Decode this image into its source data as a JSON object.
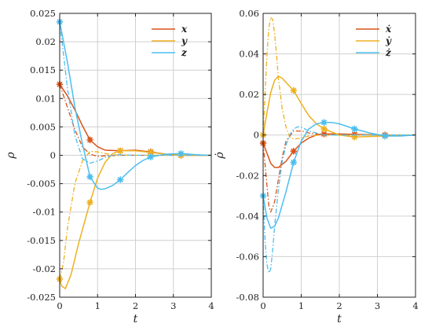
{
  "chart_data": [
    {
      "type": "line",
      "xlabel": "t",
      "ylabel": "ρ",
      "xlim": [
        0,
        4
      ],
      "ylim": [
        -0.025,
        0.025
      ],
      "xticks": [
        "0",
        "1",
        "2",
        "3",
        "4"
      ],
      "yticks": [
        "-0.025",
        "-0.02",
        "-0.015",
        "-0.01",
        "-0.005",
        "0",
        "0.005",
        "0.01",
        "0.015",
        "0.02",
        "0.025"
      ],
      "grid": true,
      "legend_position": "top-right",
      "series": [
        {
          "name": "x",
          "color": "#d95319",
          "solid": {
            "x": [
              0,
              0.2,
              0.4,
              0.6,
              0.8,
              1.0,
              1.2,
              1.6,
              2.0,
              2.4,
              2.8,
              3.2,
              4.0
            ],
            "y": [
              0.0125,
              0.0105,
              0.008,
              0.0052,
              0.0027,
              0.0015,
              0.0009,
              0.0008,
              0.0009,
              0.0006,
              0.0002,
              0.0,
              0.0
            ]
          },
          "dashdot": {
            "x": [
              0,
              0.2,
              0.4,
              0.6,
              0.8,
              1.0,
              1.2,
              1.6,
              2.0,
              4.0
            ],
            "y": [
              0.0125,
              0.0085,
              0.0045,
              0.0015,
              0.0002,
              -0.0002,
              -0.0001,
              0.0,
              0.0,
              0.0
            ]
          },
          "markers": {
            "x": [
              0,
              0.8,
              1.6,
              2.4,
              3.2
            ],
            "y": [
              0.0125,
              0.0027,
              0.0008,
              0.0006,
              0.0
            ]
          }
        },
        {
          "name": "y",
          "color": "#edb120",
          "solid": {
            "x": [
              0,
              0.05,
              0.15,
              0.3,
              0.5,
              0.8,
              1.0,
              1.2,
              1.4,
              1.6,
              2.0,
              2.4,
              2.8,
              3.2,
              4.0
            ],
            "y": [
              -0.0218,
              -0.023,
              -0.0235,
              -0.021,
              -0.0155,
              -0.0083,
              -0.004,
              -0.0012,
              0.0003,
              0.0008,
              0.0008,
              0.0005,
              0.0002,
              0.0,
              0.0
            ]
          },
          "dashdot": {
            "x": [
              0,
              0.1,
              0.2,
              0.4,
              0.6,
              0.8,
              1.0,
              1.2,
              1.4,
              2.0,
              4.0
            ],
            "y": [
              -0.0218,
              -0.019,
              -0.013,
              -0.005,
              -0.001,
              0.0007,
              0.0006,
              0.0003,
              0.0001,
              0.0,
              0.0
            ]
          },
          "markers": {
            "x": [
              0,
              0.8,
              1.6,
              2.4,
              3.2
            ],
            "y": [
              -0.0218,
              -0.0083,
              0.0008,
              0.0005,
              0.0
            ]
          }
        },
        {
          "name": "z",
          "color": "#4dbeee",
          "solid": {
            "x": [
              0,
              0.2,
              0.4,
              0.6,
              0.8,
              1.0,
              1.1,
              1.2,
              1.4,
              1.6,
              1.8,
              2.0,
              2.2,
              2.4,
              2.8,
              3.2,
              3.6,
              4.0
            ],
            "y": [
              0.0235,
              0.0165,
              0.0085,
              0.002,
              -0.0038,
              -0.0058,
              -0.006,
              -0.0059,
              -0.0053,
              -0.0043,
              -0.003,
              -0.0018,
              -0.0009,
              -0.0003,
              0.0002,
              0.0003,
              0.0001,
              0.0
            ]
          },
          "dashdot": {
            "x": [
              0,
              0.2,
              0.4,
              0.6,
              0.8,
              1.0,
              1.2,
              1.4,
              1.6,
              2.0,
              4.0
            ],
            "y": [
              0.0235,
              0.012,
              0.0035,
              -0.0006,
              -0.0014,
              -0.001,
              -0.0004,
              0.0,
              0.0001,
              0.0,
              0.0
            ]
          },
          "markers": {
            "x": [
              0,
              0.8,
              1.6,
              2.4,
              3.2
            ],
            "y": [
              0.0235,
              -0.0038,
              -0.0043,
              -0.0003,
              0.0003
            ]
          }
        }
      ]
    },
    {
      "type": "line",
      "xlabel": "t",
      "ylabel": "ρ̇",
      "xlim": [
        0,
        4
      ],
      "ylim": [
        -0.08,
        0.06
      ],
      "xticks": [
        "0",
        "1",
        "2",
        "3",
        "4"
      ],
      "yticks": [
        "-0.08",
        "-0.06",
        "-0.04",
        "-0.02",
        "0",
        "0.02",
        "0.04",
        "0.06"
      ],
      "grid": true,
      "legend_position": "top-right",
      "series": [
        {
          "name": "ẋ",
          "color": "#d95319",
          "solid": {
            "x": [
              0,
              0.1,
              0.2,
              0.3,
              0.4,
              0.6,
              0.8,
              1.0,
              1.2,
              1.4,
              1.6,
              2.0,
              2.4,
              3.2,
              4.0
            ],
            "y": [
              -0.004,
              -0.009,
              -0.014,
              -0.016,
              -0.016,
              -0.013,
              -0.008,
              -0.004,
              -0.0015,
              0.0,
              0.0005,
              0.0005,
              0.0003,
              0.0,
              0.0
            ]
          },
          "dashdot": {
            "x": [
              0,
              0.1,
              0.15,
              0.2,
              0.3,
              0.4,
              0.5,
              0.6,
              0.8,
              1.0,
              1.2,
              1.6,
              2.0,
              4.0
            ],
            "y": [
              -0.004,
              -0.025,
              -0.035,
              -0.038,
              -0.033,
              -0.022,
              -0.011,
              -0.003,
              0.002,
              0.002,
              0.001,
              0.0,
              0.0,
              0.0
            ]
          },
          "markers": {
            "x": [
              0,
              0.8,
              1.6,
              2.4,
              3.2
            ],
            "y": [
              -0.004,
              -0.008,
              0.0005,
              0.0003,
              0.0
            ]
          }
        },
        {
          "name": "ẏ",
          "color": "#edb120",
          "solid": {
            "x": [
              0,
              0.1,
              0.2,
              0.3,
              0.4,
              0.5,
              0.6,
              0.8,
              1.0,
              1.2,
              1.4,
              1.6,
              2.0,
              2.4,
              3.2,
              4.0
            ],
            "y": [
              0.0,
              0.011,
              0.021,
              0.027,
              0.029,
              0.028,
              0.026,
              0.022,
              0.0155,
              0.0095,
              0.0055,
              0.003,
              0.0,
              -0.001,
              -0.0005,
              0.0
            ]
          },
          "dashdot": {
            "x": [
              0,
              0.05,
              0.1,
              0.15,
              0.2,
              0.25,
              0.3,
              0.35,
              0.4,
              0.5,
              0.6,
              0.7,
              0.8,
              1.0,
              1.2,
              1.5,
              2.0,
              4.0
            ],
            "y": [
              0.0,
              0.02,
              0.04,
              0.053,
              0.058,
              0.057,
              0.05,
              0.04,
              0.028,
              0.013,
              0.004,
              -0.001,
              -0.002,
              -0.0015,
              -0.0005,
              0.0,
              0.0,
              0.0
            ]
          },
          "markers": {
            "x": [
              0,
              0.8,
              1.6,
              2.4,
              3.2
            ],
            "y": [
              0.0,
              0.022,
              0.003,
              -0.001,
              -0.0005
            ]
          }
        },
        {
          "name": "ż",
          "color": "#4dbeee",
          "solid": {
            "x": [
              0,
              0.1,
              0.2,
              0.3,
              0.4,
              0.6,
              0.8,
              1.0,
              1.2,
              1.4,
              1.6,
              1.8,
              2.0,
              2.4,
              2.8,
              3.2,
              3.6,
              4.0
            ],
            "y": [
              -0.03,
              -0.041,
              -0.046,
              -0.045,
              -0.041,
              -0.028,
              -0.0135,
              -0.003,
              0.003,
              0.0055,
              0.0062,
              0.0062,
              0.0055,
              0.003,
              0.001,
              -0.0005,
              -0.0005,
              0.0
            ]
          },
          "dashdot": {
            "x": [
              0,
              0.05,
              0.1,
              0.15,
              0.2,
              0.25,
              0.3,
              0.4,
              0.5,
              0.6,
              0.7,
              0.8,
              0.9,
              1.0,
              1.2,
              1.4,
              1.6,
              2.0,
              4.0
            ],
            "y": [
              -0.03,
              -0.052,
              -0.064,
              -0.068,
              -0.066,
              -0.057,
              -0.045,
              -0.027,
              -0.013,
              -0.005,
              0.0,
              0.003,
              0.004,
              0.004,
              0.002,
              0.001,
              0.0,
              0.0,
              0.0
            ]
          },
          "markers": {
            "x": [
              0,
              0.8,
              1.6,
              2.4,
              3.2
            ],
            "y": [
              -0.03,
              -0.0135,
              0.0062,
              0.003,
              -0.0005
            ]
          }
        }
      ]
    }
  ]
}
